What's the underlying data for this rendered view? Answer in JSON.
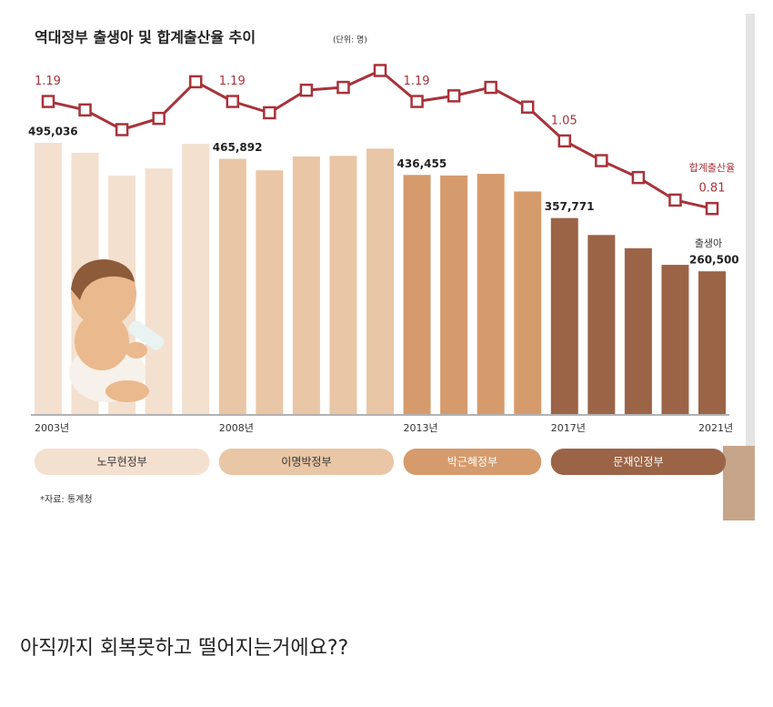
{
  "chart_data": {
    "type": "bar-line",
    "title": "역대정부 출생아 및 합계출산율 추이",
    "subtitle": "(단위: 명)",
    "categories": [
      "2003년",
      null,
      null,
      null,
      null,
      "2008년",
      null,
      null,
      null,
      null,
      "2013년",
      null,
      null,
      null,
      "2017년",
      null,
      null,
      null,
      "2021년"
    ],
    "series": [
      {
        "name": "출생아",
        "values": [
          495036,
          476958,
          435031,
          448153,
          493189,
          465892,
          444849,
          470171,
          471265,
          484550,
          436455,
          435435,
          438420,
          406243,
          357771,
          326822,
          302676,
          272337,
          260500
        ],
        "value_labels": [
          "495,036",
          null,
          null,
          null,
          null,
          "465,892",
          null,
          null,
          null,
          null,
          "436,455",
          null,
          null,
          null,
          "357,771",
          null,
          null,
          null,
          "260,500"
        ]
      },
      {
        "name": "합계출산율",
        "color": "#a8323a",
        "axis": "y2",
        "values": [
          1.19,
          1.16,
          1.09,
          1.13,
          1.26,
          1.19,
          1.15,
          1.23,
          1.24,
          1.3,
          1.19,
          1.21,
          1.24,
          1.17,
          1.05,
          0.98,
          0.92,
          0.84,
          0.81
        ],
        "labeled": [
          true,
          false,
          false,
          false,
          false,
          true,
          false,
          false,
          false,
          false,
          true,
          false,
          false,
          false,
          true,
          false,
          false,
          false,
          true
        ]
      }
    ],
    "ylim": [
      0,
      500000
    ],
    "y2lim": [
      0.1,
      1.35
    ],
    "periods": [
      {
        "label": "노무현정부",
        "color": "#f4e0cf"
      },
      {
        "label": "이명박정부",
        "color": "#e9c6a5"
      },
      {
        "label": "박근혜정부",
        "color": "#d69b6c"
      },
      {
        "label": "문재인정부",
        "color": "#9b6447"
      }
    ],
    "source": "*자료: 통계청"
  },
  "post": {
    "caption": "아직까지 회복못하고 떨어지는거에요??"
  }
}
